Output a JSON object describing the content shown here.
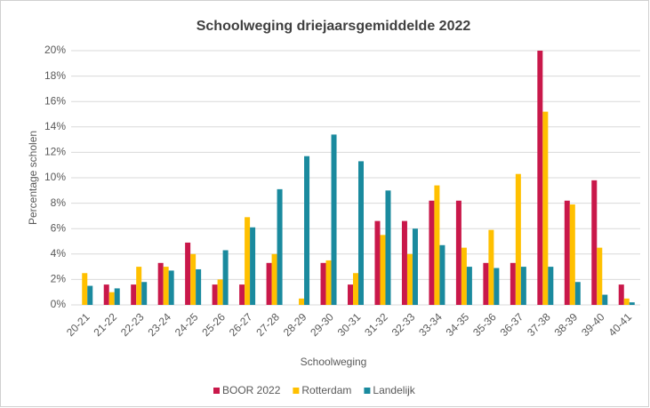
{
  "chart_data": {
    "type": "bar",
    "title": "Schoolweging driejaarsgemiddelde 2022",
    "x_label": "Schoolweging",
    "y_label": "Percentage scholen",
    "categories": [
      "20-21",
      "21-22",
      "22-23",
      "23-24",
      "24-25",
      "25-26",
      "26-27",
      "27-28",
      "28-29",
      "29-30",
      "30-31",
      "31-32",
      "32-33",
      "33-34",
      "34-35",
      "35-36",
      "36-37",
      "37-38",
      "38-39",
      "39-40",
      "40-41"
    ],
    "series": [
      {
        "name": "BOOR 2022",
        "color": "#c9184a",
        "values": [
          0,
          1.6,
          1.6,
          3.3,
          4.9,
          1.6,
          1.6,
          3.3,
          0,
          3.3,
          1.6,
          6.6,
          6.6,
          8.2,
          8.2,
          3.3,
          3.3,
          20.0,
          8.2,
          9.8,
          1.6
        ]
      },
      {
        "name": "Rotterdam",
        "color": "#ffc000",
        "values": [
          2.5,
          1.0,
          3.0,
          3.0,
          4.0,
          2.0,
          6.9,
          4.0,
          0.5,
          3.5,
          2.5,
          5.5,
          4.0,
          9.4,
          4.5,
          5.9,
          10.3,
          15.2,
          7.9,
          4.5,
          0.5
        ]
      },
      {
        "name": "Landelijk",
        "color": "#1a8a9e",
        "values": [
          1.5,
          1.3,
          1.8,
          2.7,
          2.8,
          4.3,
          6.1,
          9.1,
          11.7,
          13.4,
          11.3,
          9.0,
          6.0,
          4.7,
          3.0,
          2.9,
          3.0,
          3.0,
          1.8,
          0.8,
          0.2
        ]
      }
    ],
    "ylim": [
      0,
      20
    ],
    "yticks": [
      {
        "value": 0,
        "label": "0%"
      },
      {
        "value": 2,
        "label": "2%"
      },
      {
        "value": 4,
        "label": "4%"
      },
      {
        "value": 6,
        "label": "6%"
      },
      {
        "value": 8,
        "label": "8%"
      },
      {
        "value": 10,
        "label": "10%"
      },
      {
        "value": 12,
        "label": "12%"
      },
      {
        "value": 14,
        "label": "14%"
      },
      {
        "value": 16,
        "label": "16%"
      },
      {
        "value": 18,
        "label": "18%"
      },
      {
        "value": 20,
        "label": "20%"
      }
    ],
    "grid": true,
    "legend": "bottom"
  }
}
